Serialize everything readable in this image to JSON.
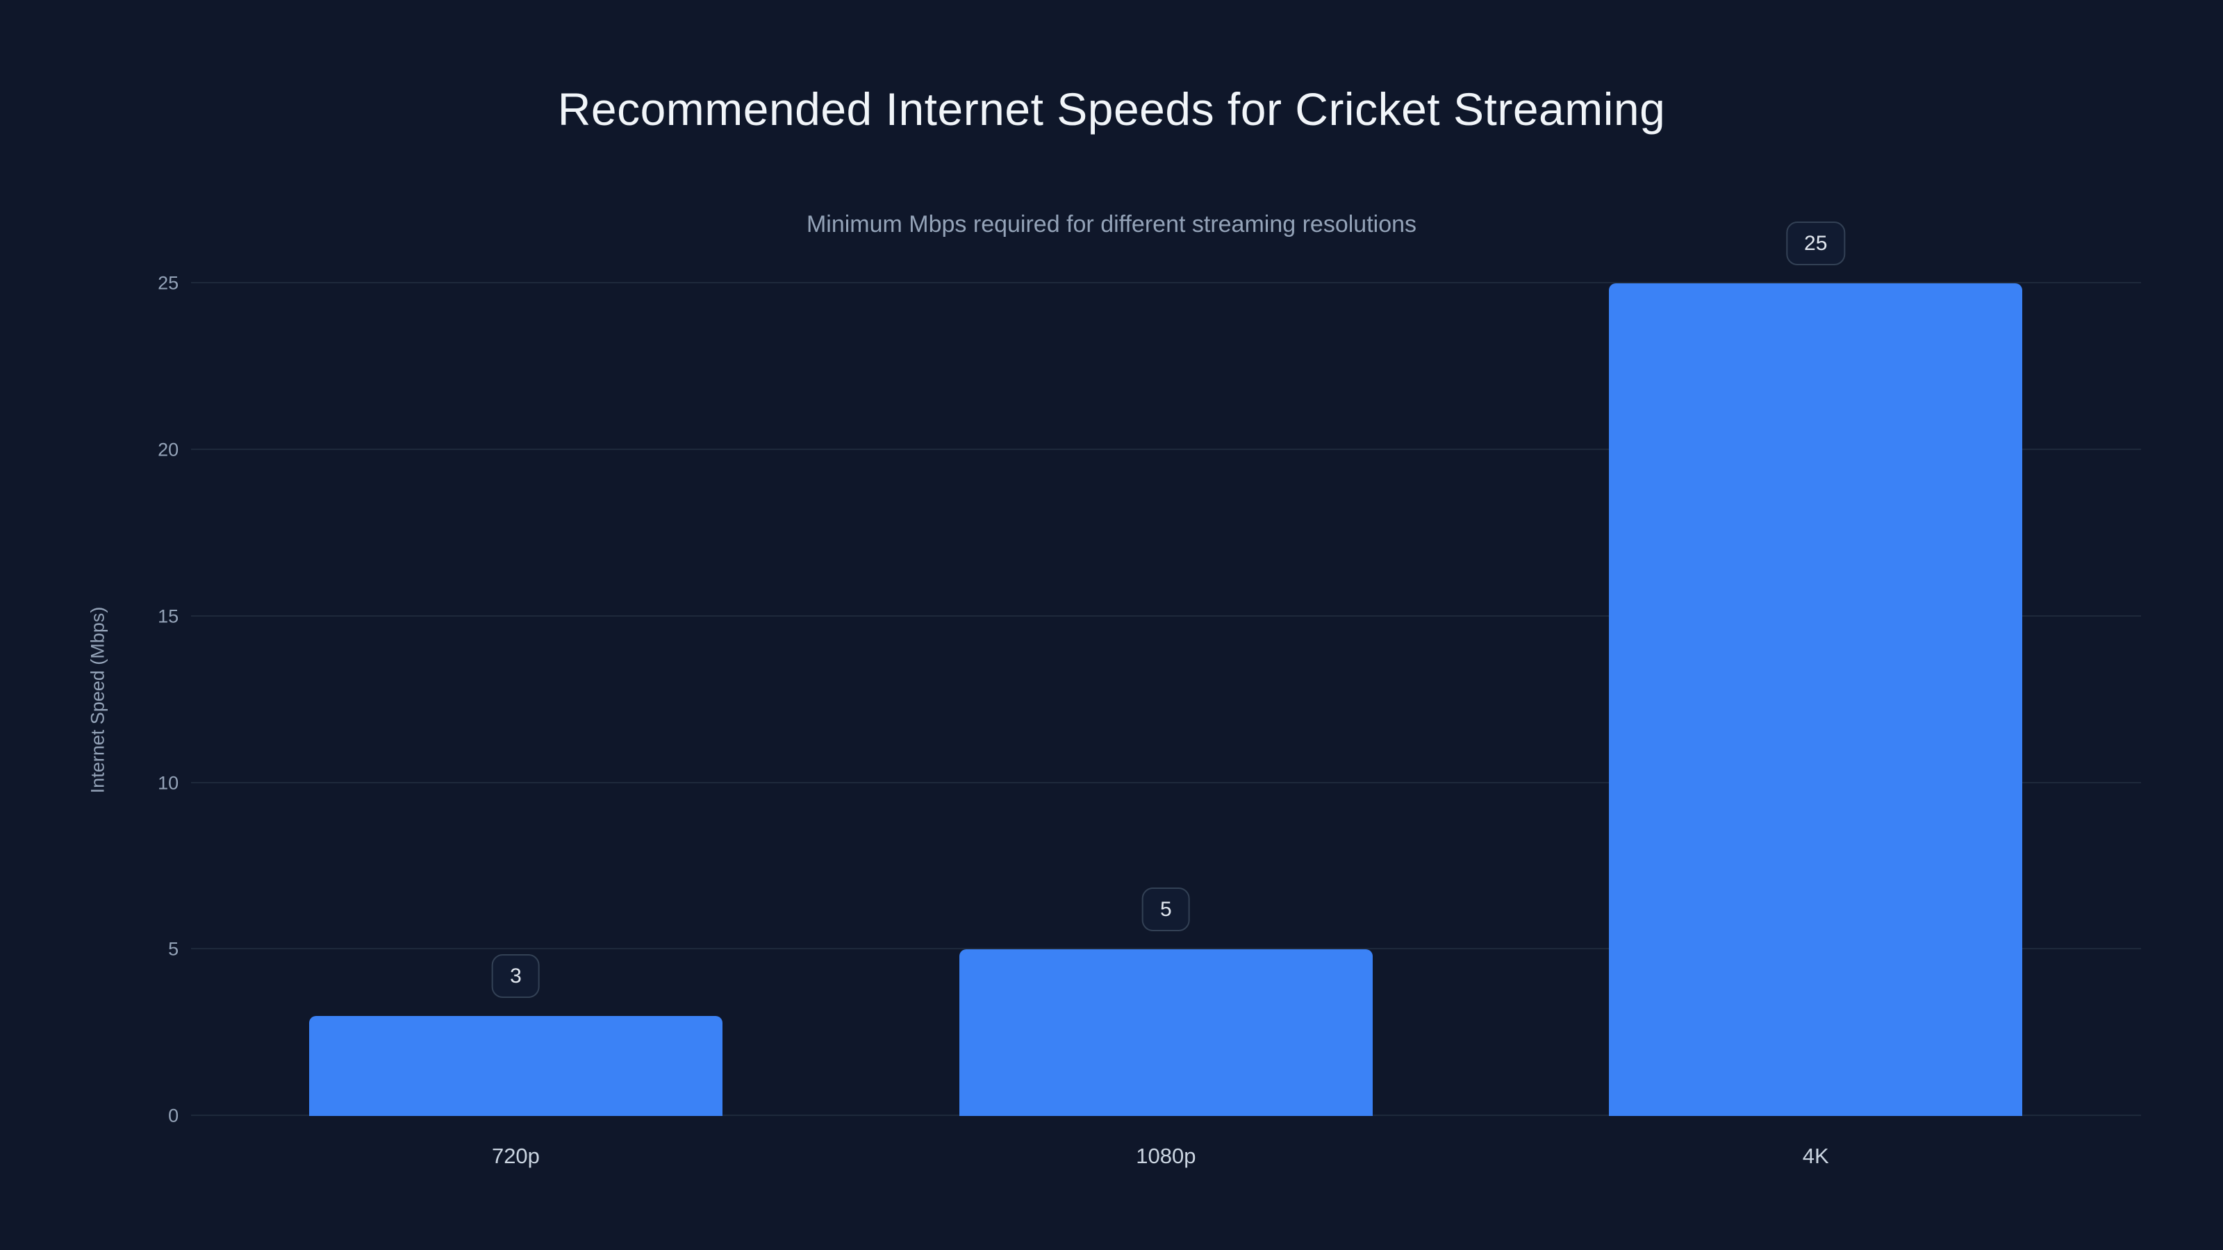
{
  "page": {
    "title": "Recommended Internet Speeds for Cricket Streaming",
    "subtitle": "Minimum Mbps required for different streaming resolutions"
  },
  "chart_data": {
    "type": "bar",
    "title": "Recommended Internet Speeds for Cricket Streaming",
    "subtitle": "Minimum Mbps required for different streaming resolutions",
    "categories": [
      "720p",
      "1080p",
      "4K"
    ],
    "values": [
      3,
      5,
      25
    ],
    "xlabel": "",
    "ylabel": "Internet Speed (Mbps)",
    "ylim": [
      0,
      25
    ],
    "yticks": [
      0,
      5,
      10,
      15,
      20,
      25
    ],
    "grid": "horizontal",
    "legend": "none",
    "colors": {
      "bar": "#3b82f6",
      "background": "#0f172a",
      "gridline": "#1e293b",
      "title_text": "#f1f5f9",
      "muted_text": "#94a3b8",
      "axis_label_text": "#cbd5e1",
      "badge_border": "#334155",
      "badge_background": "#111b31"
    }
  }
}
